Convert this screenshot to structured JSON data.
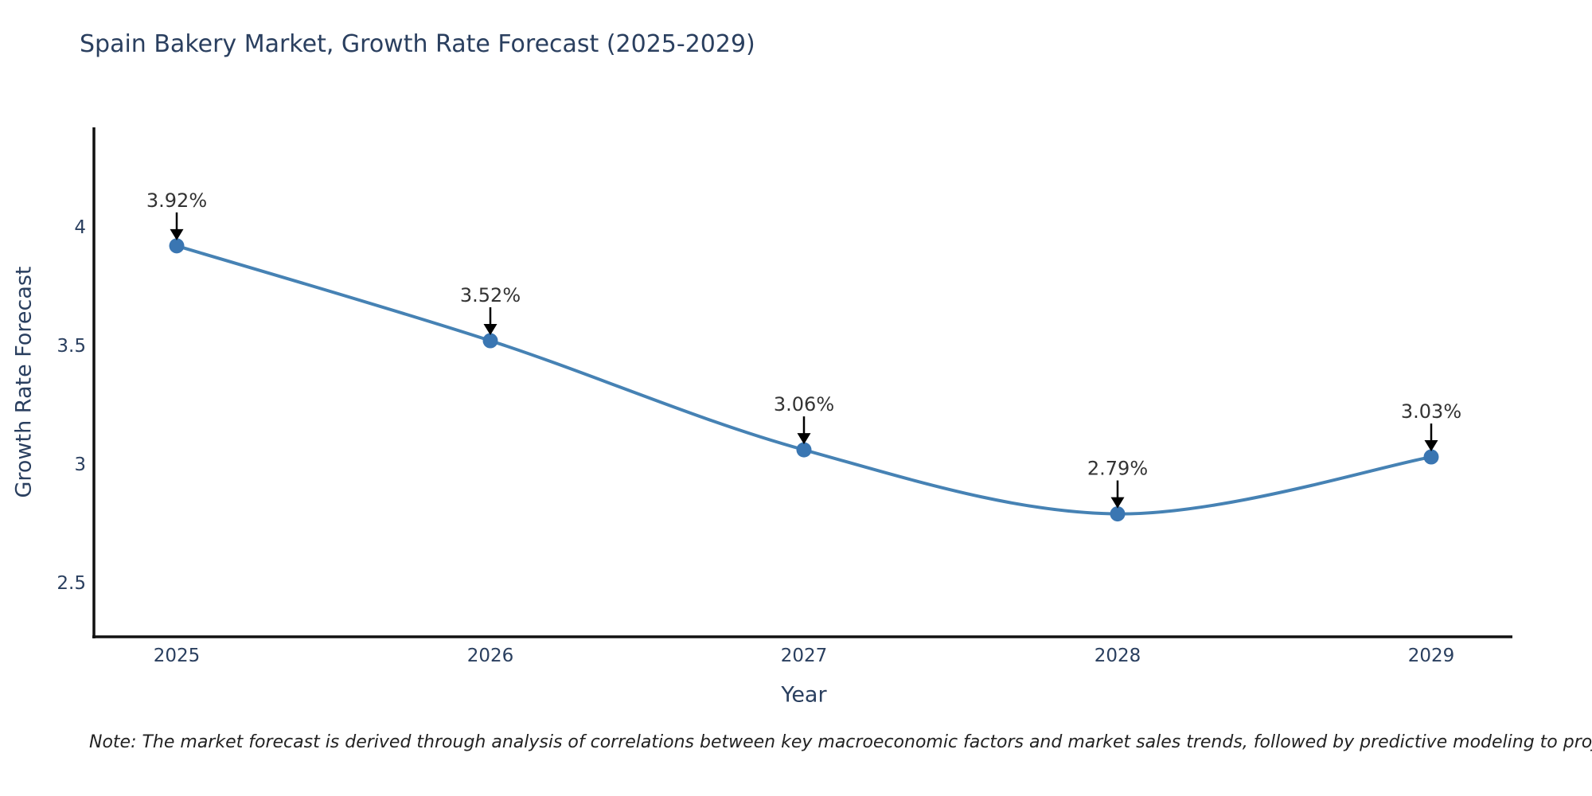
{
  "chart_data": {
    "type": "line",
    "title": "Spain Bakery Market, Growth Rate Forecast (2025-2029)",
    "xlabel": "Year",
    "ylabel": "Growth Rate Forecast",
    "categories": [
      "2025",
      "2026",
      "2027",
      "2028",
      "2029"
    ],
    "values": [
      3.92,
      3.52,
      3.06,
      2.79,
      3.03
    ],
    "point_labels": [
      "3.92%",
      "3.52%",
      "3.06%",
      "2.79%",
      "3.03%"
    ],
    "yticks": [
      {
        "label": "4",
        "value": 4.0
      },
      {
        "label": "3.5",
        "value": 3.5
      },
      {
        "label": "3",
        "value": 3.0
      },
      {
        "label": "2.5",
        "value": 2.5
      }
    ],
    "ylim": [
      2.27,
      4.42
    ],
    "grid": false,
    "legend": "none",
    "colors": {
      "line": "#4682b4",
      "marker": "#3a76b2",
      "arrow": "#000000",
      "axis_spine": "#111111",
      "axis_text": "#2a3f5f",
      "annotation_text": "#333333"
    }
  },
  "note": {
    "text": "Note: The market forecast is derived through analysis of correlations between key macroeconomic factors and market sales trends, followed by predictive modeling to project future sales"
  }
}
